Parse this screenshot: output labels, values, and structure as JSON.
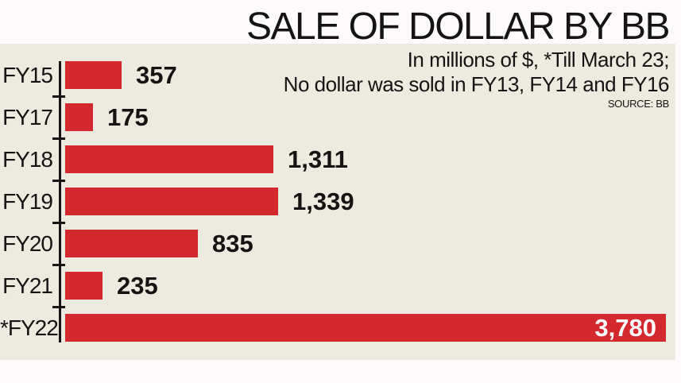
{
  "page": {
    "background": "#fdfafc",
    "panel_background": "#edebdf"
  },
  "header": {
    "title": "SALE OF DOLLAR BY BB",
    "subtitle_line1": "In millions of $, *Till March 23;",
    "subtitle_line2": "No dollar was sold in FY13, FY14 and FY16",
    "source": "SOURCE: BB"
  },
  "chart_data": {
    "type": "bar",
    "orientation": "horizontal",
    "title": "SALE OF DOLLAR BY BB",
    "note": "In millions of $, *Till March 23; No dollar was sold in FY13, FY14 and FY16",
    "source": "SOURCE: BB",
    "unit": "millions of $",
    "categories": [
      "FY15",
      "FY17",
      "FY18",
      "FY19",
      "FY20",
      "FY21",
      "*FY22"
    ],
    "values": [
      357,
      175,
      1311,
      1339,
      835,
      235,
      3780
    ],
    "value_labels": [
      "357",
      "175",
      "1,311",
      "1,339",
      "835",
      "235",
      "3,780"
    ],
    "value_label_inside": [
      false,
      false,
      false,
      false,
      false,
      false,
      true
    ],
    "xlim": [
      0,
      3780
    ],
    "grid": false,
    "legend": false,
    "bar_color": "#d2282e",
    "axis_color": "#161514",
    "value_text_color": "#151413",
    "value_text_color_inside": "#ffffff"
  }
}
